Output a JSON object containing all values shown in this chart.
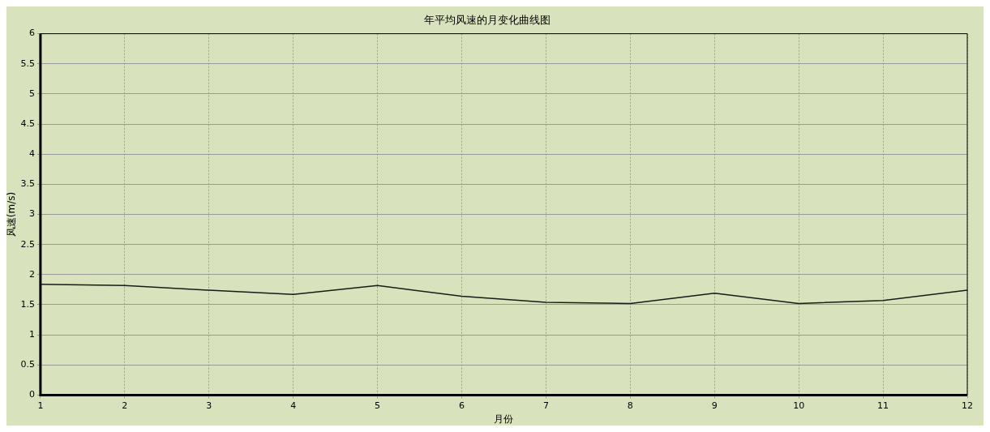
{
  "chart_data": {
    "type": "line",
    "title": "年平均风速的月变化曲线图",
    "xlabel": "月份",
    "ylabel": "风速(m/s)",
    "x": [
      1,
      2,
      3,
      4,
      5,
      6,
      7,
      8,
      9,
      10,
      11,
      12
    ],
    "series": [
      {
        "color": "#1a1a1a",
        "values": [
          1.84,
          1.82,
          1.74,
          1.67,
          1.82,
          1.64,
          1.54,
          1.52,
          1.69,
          1.52,
          1.57,
          1.74
        ]
      }
    ],
    "xlim": [
      1,
      12
    ],
    "xticks": [
      1,
      2,
      3,
      4,
      5,
      6,
      7,
      8,
      9,
      10,
      11,
      12
    ],
    "ylim": [
      0,
      6
    ],
    "yticks": [
      0,
      0.5,
      1,
      1.5,
      2,
      2.5,
      3,
      3.5,
      4,
      4.5,
      5,
      5.5,
      6
    ],
    "grid": true,
    "legend": false,
    "marker": "none",
    "line_style": "solid"
  }
}
